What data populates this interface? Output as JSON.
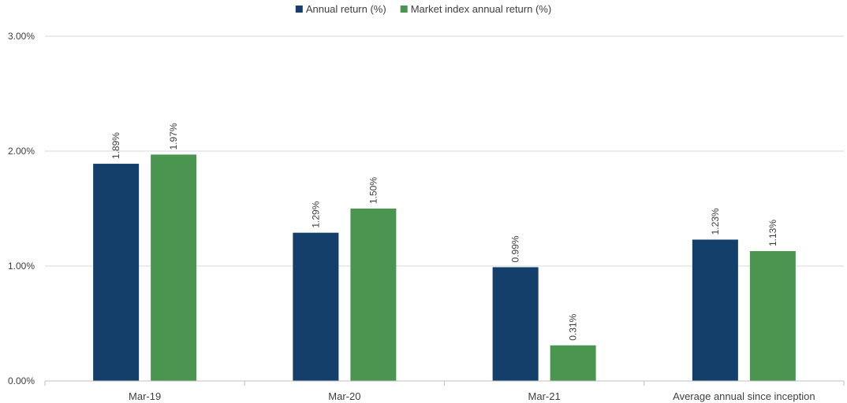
{
  "chart_data": {
    "type": "bar",
    "categories": [
      "Mar-19",
      "Mar-20",
      "Mar-21",
      "Average annual since inception"
    ],
    "series": [
      {
        "name": "Annual return (%)",
        "values": [
          1.89,
          1.29,
          0.99,
          1.23
        ],
        "color": "#153f6b"
      },
      {
        "name": "Market index annual return (%)",
        "values": [
          1.97,
          1.5,
          0.31,
          1.13
        ],
        "color": "#4a9650"
      }
    ],
    "data_labels": [
      [
        "1.89%",
        "1.29%",
        "0.99%",
        "1.23%"
      ],
      [
        "1.97%",
        "1.50%",
        "0.31%",
        "1.13%"
      ]
    ],
    "y_ticks": [
      0,
      1,
      2,
      3
    ],
    "y_tick_labels": [
      "0.00%",
      "1.00%",
      "2.00%",
      "3.00%"
    ],
    "ylim": [
      0,
      3
    ],
    "title": "",
    "xlabel": "",
    "ylabel": "",
    "grid": true,
    "legend_position": "top-center",
    "gridline_color": "#d9d9d9",
    "text_color": "#404040"
  }
}
